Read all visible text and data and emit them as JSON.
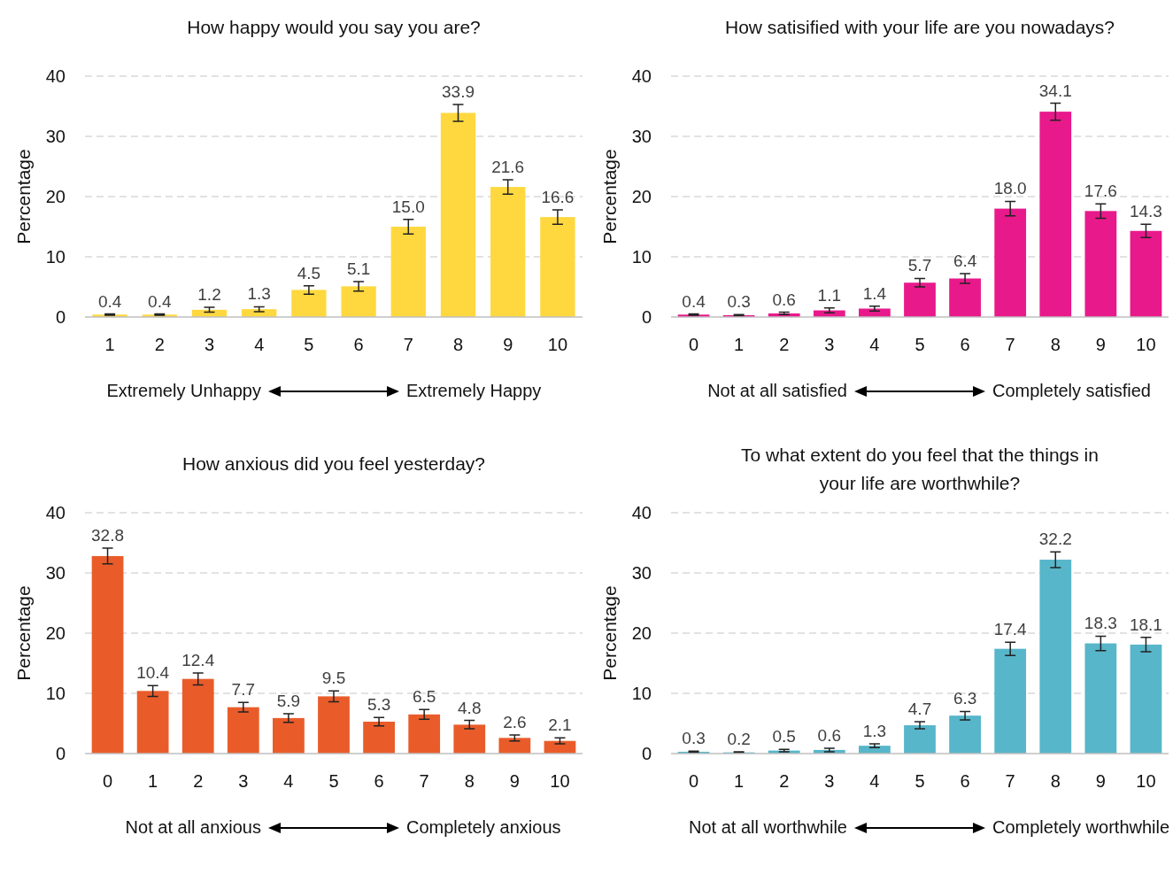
{
  "chart_data": [
    {
      "type": "bar",
      "title": "How happy would you say you are?",
      "ylabel": "Percentage",
      "categories": [
        "1",
        "2",
        "3",
        "4",
        "5",
        "6",
        "7",
        "8",
        "9",
        "10"
      ],
      "values": [
        0.4,
        0.4,
        1.2,
        1.3,
        4.5,
        5.1,
        15.0,
        33.9,
        21.6,
        16.6
      ],
      "value_labels": [
        "0.4",
        "0.4",
        "1.2",
        "1.3",
        "4.5",
        "5.1",
        "15.0",
        "33.9",
        "21.6",
        "16.6"
      ],
      "errors": [
        0.1,
        0.1,
        0.4,
        0.4,
        0.7,
        0.8,
        1.2,
        1.4,
        1.2,
        1.2
      ],
      "color": "#ffd83f",
      "ylim": [
        0,
        40
      ],
      "yticks": [
        0,
        10,
        20,
        30,
        40
      ],
      "grid": "y",
      "annotations": [
        "Extremely Unhappy",
        "Extremely Happy"
      ]
    },
    {
      "type": "bar",
      "title": "How satisified with your life are you nowadays?",
      "ylabel": "Percentage",
      "categories": [
        "0",
        "1",
        "2",
        "3",
        "4",
        "5",
        "6",
        "7",
        "8",
        "9",
        "10"
      ],
      "values": [
        0.4,
        0.3,
        0.6,
        1.1,
        1.4,
        5.7,
        6.4,
        18.0,
        34.1,
        17.6,
        14.3
      ],
      "value_labels": [
        "0.4",
        "0.3",
        "0.6",
        "1.1",
        "1.4",
        "5.7",
        "6.4",
        "18.0",
        "34.1",
        "17.6",
        "14.3"
      ],
      "errors": [
        0.1,
        0.1,
        0.2,
        0.4,
        0.4,
        0.7,
        0.8,
        1.2,
        1.4,
        1.2,
        1.1
      ],
      "color": "#e8198b",
      "ylim": [
        0,
        40
      ],
      "yticks": [
        0,
        10,
        20,
        30,
        40
      ],
      "grid": "y",
      "annotations": [
        "Not at all satisfied",
        "Completely satisfied"
      ]
    },
    {
      "type": "bar",
      "title": "How anxious did you feel yesterday?",
      "ylabel": "Percentage",
      "categories": [
        "0",
        "1",
        "2",
        "3",
        "4",
        "5",
        "6",
        "7",
        "8",
        "9",
        "10"
      ],
      "values": [
        32.8,
        10.4,
        12.4,
        7.7,
        5.9,
        9.5,
        5.3,
        6.5,
        4.8,
        2.6,
        2.1
      ],
      "value_labels": [
        "32.8",
        "10.4",
        "12.4",
        "7.7",
        "5.9",
        "9.5",
        "5.3",
        "6.5",
        "4.8",
        "2.6",
        "2.1"
      ],
      "errors": [
        1.3,
        0.9,
        1.0,
        0.8,
        0.7,
        0.9,
        0.7,
        0.8,
        0.7,
        0.5,
        0.5
      ],
      "color": "#e95c2a",
      "ylim": [
        0,
        40
      ],
      "yticks": [
        0,
        10,
        20,
        30,
        40
      ],
      "grid": "y",
      "annotations": [
        "Not at all anxious",
        "Completely anxious"
      ]
    },
    {
      "type": "bar",
      "title": "To what extent do you feel that the things in your life are worthwhile?",
      "ylabel": "Percentage",
      "categories": [
        "0",
        "1",
        "2",
        "3",
        "4",
        "5",
        "6",
        "7",
        "8",
        "9",
        "10"
      ],
      "values": [
        0.3,
        0.2,
        0.5,
        0.6,
        1.3,
        4.7,
        6.3,
        17.4,
        32.2,
        18.3,
        18.1
      ],
      "value_labels": [
        "0.3",
        "0.2",
        "0.5",
        "0.6",
        "1.3",
        "4.7",
        "6.3",
        "17.4",
        "32.2",
        "18.3",
        "18.1"
      ],
      "errors": [
        0.1,
        0.1,
        0.2,
        0.3,
        0.3,
        0.6,
        0.7,
        1.1,
        1.3,
        1.2,
        1.2
      ],
      "color": "#57b6c9",
      "ylim": [
        0,
        40
      ],
      "yticks": [
        0,
        10,
        20,
        30,
        40
      ],
      "grid": "y",
      "annotations": [
        "Not at all worthwhile",
        "Completely worthwhile"
      ]
    }
  ]
}
